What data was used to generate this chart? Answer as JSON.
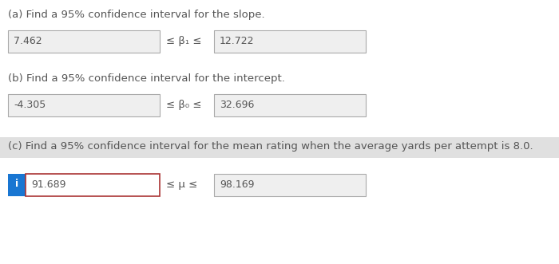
{
  "title_a": "(a) Find a 95% confidence interval for the slope.",
  "title_b": "(b) Find a 95% confidence interval for the intercept.",
  "title_c": "(c) Find a 95% confidence interval for the mean rating when the average yards per attempt is 8.0.",
  "val_a_left": "7.462",
  "val_a_right": "12.722",
  "symbol_a": "≤ β₁ ≤",
  "val_b_left": "-4.305",
  "val_b_right": "32.696",
  "symbol_b": "≤ β₀ ≤",
  "val_c_left": "91.689",
  "val_c_right": "98.169",
  "symbol_c": "≤ μ ≤",
  "bg_color": "#ffffff",
  "box_bg": "#efefef",
  "box_border": "#aaaaaa",
  "text_color": "#555555",
  "title_c_bg": "#e0e0e0",
  "info_blue": "#1976D2",
  "c_box_border_red": "#aa3333",
  "font_size_title": 9.5,
  "font_size_val": 9.0,
  "font_size_symbol": 9.5,
  "fig_w": 7.0,
  "fig_h": 3.31,
  "dpi": 100
}
